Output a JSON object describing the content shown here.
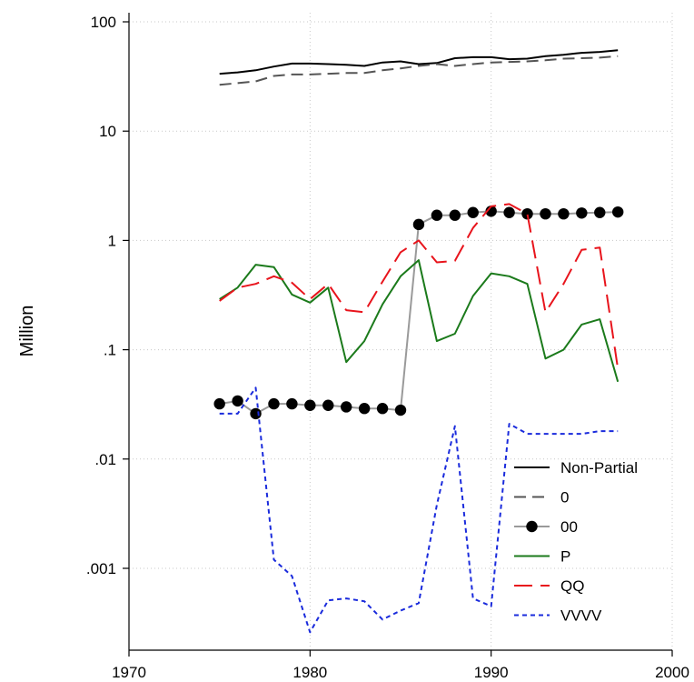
{
  "chart_data": {
    "type": "line",
    "title": "",
    "xlabel": "",
    "ylabel": "Million",
    "xlim": [
      1970,
      2000
    ],
    "ylim": [
      0.00023,
      100
    ],
    "yscale": "log",
    "grid": true,
    "legend_position": "inside-bottom-right",
    "x_ticks": [
      {
        "value": 1970,
        "label": "1970"
      },
      {
        "value": 1980,
        "label": "1980"
      },
      {
        "value": 1990,
        "label": "1990"
      },
      {
        "value": 2000,
        "label": "2000"
      }
    ],
    "y_ticks": [
      {
        "value": 100,
        "label": "100"
      },
      {
        "value": 10,
        "label": "10"
      },
      {
        "value": 1,
        "label": "1"
      },
      {
        "value": 0.1,
        "label": ".1"
      },
      {
        "value": 0.01,
        "label": ".01"
      },
      {
        "value": 0.001,
        "label": ".001"
      }
    ],
    "x": [
      1975,
      1976,
      1977,
      1978,
      1979,
      1980,
      1981,
      1982,
      1983,
      1984,
      1985,
      1986,
      1987,
      1988,
      1989,
      1990,
      1991,
      1992,
      1993,
      1994,
      1995,
      1996,
      1997
    ],
    "series": [
      {
        "name": "Non-Partial",
        "color": "#000000",
        "style": "solid",
        "marker": false,
        "values": [
          33.5,
          34.5,
          36.0,
          39.0,
          41.5,
          41.5,
          41.0,
          40.5,
          39.5,
          42.5,
          43.5,
          41.0,
          42.0,
          46.5,
          47.5,
          47.5,
          45.5,
          46.0,
          48.5,
          50.0,
          52.0,
          53.0,
          55.0
        ]
      },
      {
        "name": "0",
        "color": "#555555",
        "style": "dashed",
        "marker": false,
        "values": [
          26.5,
          27.5,
          28.5,
          32.0,
          33.0,
          33.0,
          33.5,
          34.0,
          34.0,
          36.0,
          37.5,
          39.5,
          41.0,
          39.5,
          41.0,
          42.5,
          43.0,
          43.5,
          44.5,
          46.0,
          46.5,
          47.0,
          48.5
        ]
      },
      {
        "name": "00",
        "color": "#9a9a9a",
        "style": "solid",
        "marker": true,
        "values": [
          0.032,
          0.034,
          0.026,
          0.032,
          0.032,
          0.031,
          0.031,
          0.03,
          0.029,
          0.029,
          0.028,
          1.4,
          1.7,
          1.7,
          1.8,
          1.85,
          1.8,
          1.75,
          1.75,
          1.75,
          1.78,
          1.8,
          1.82
        ]
      },
      {
        "name": "P",
        "color": "#1b7a1b",
        "style": "solid",
        "marker": false,
        "values": [
          0.29,
          0.37,
          0.6,
          0.57,
          0.32,
          0.27,
          0.37,
          0.077,
          0.12,
          0.26,
          0.47,
          0.66,
          0.12,
          0.14,
          0.31,
          0.5,
          0.47,
          0.4,
          0.083,
          0.1,
          0.17,
          0.19,
          0.051
        ]
      },
      {
        "name": "QQ",
        "color": "#e8141c",
        "style": "longdash",
        "marker": false,
        "values": [
          0.28,
          0.37,
          0.4,
          0.47,
          0.41,
          0.29,
          0.4,
          0.23,
          0.22,
          0.42,
          0.78,
          1.0,
          0.63,
          0.65,
          1.3,
          2.05,
          2.15,
          1.75,
          0.22,
          0.4,
          0.82,
          0.86,
          0.067
        ]
      },
      {
        "name": "VVVV",
        "color": "#1a2bdc",
        "style": "shortdash",
        "marker": false,
        "values": [
          0.026,
          0.026,
          0.045,
          0.0012,
          0.00085,
          0.00026,
          0.00051,
          0.00053,
          0.0005,
          0.00034,
          0.00041,
          0.00048,
          0.0038,
          0.02,
          0.00053,
          0.00045,
          0.021,
          0.017,
          0.017,
          0.017,
          0.017,
          0.018,
          0.018
        ]
      }
    ]
  }
}
